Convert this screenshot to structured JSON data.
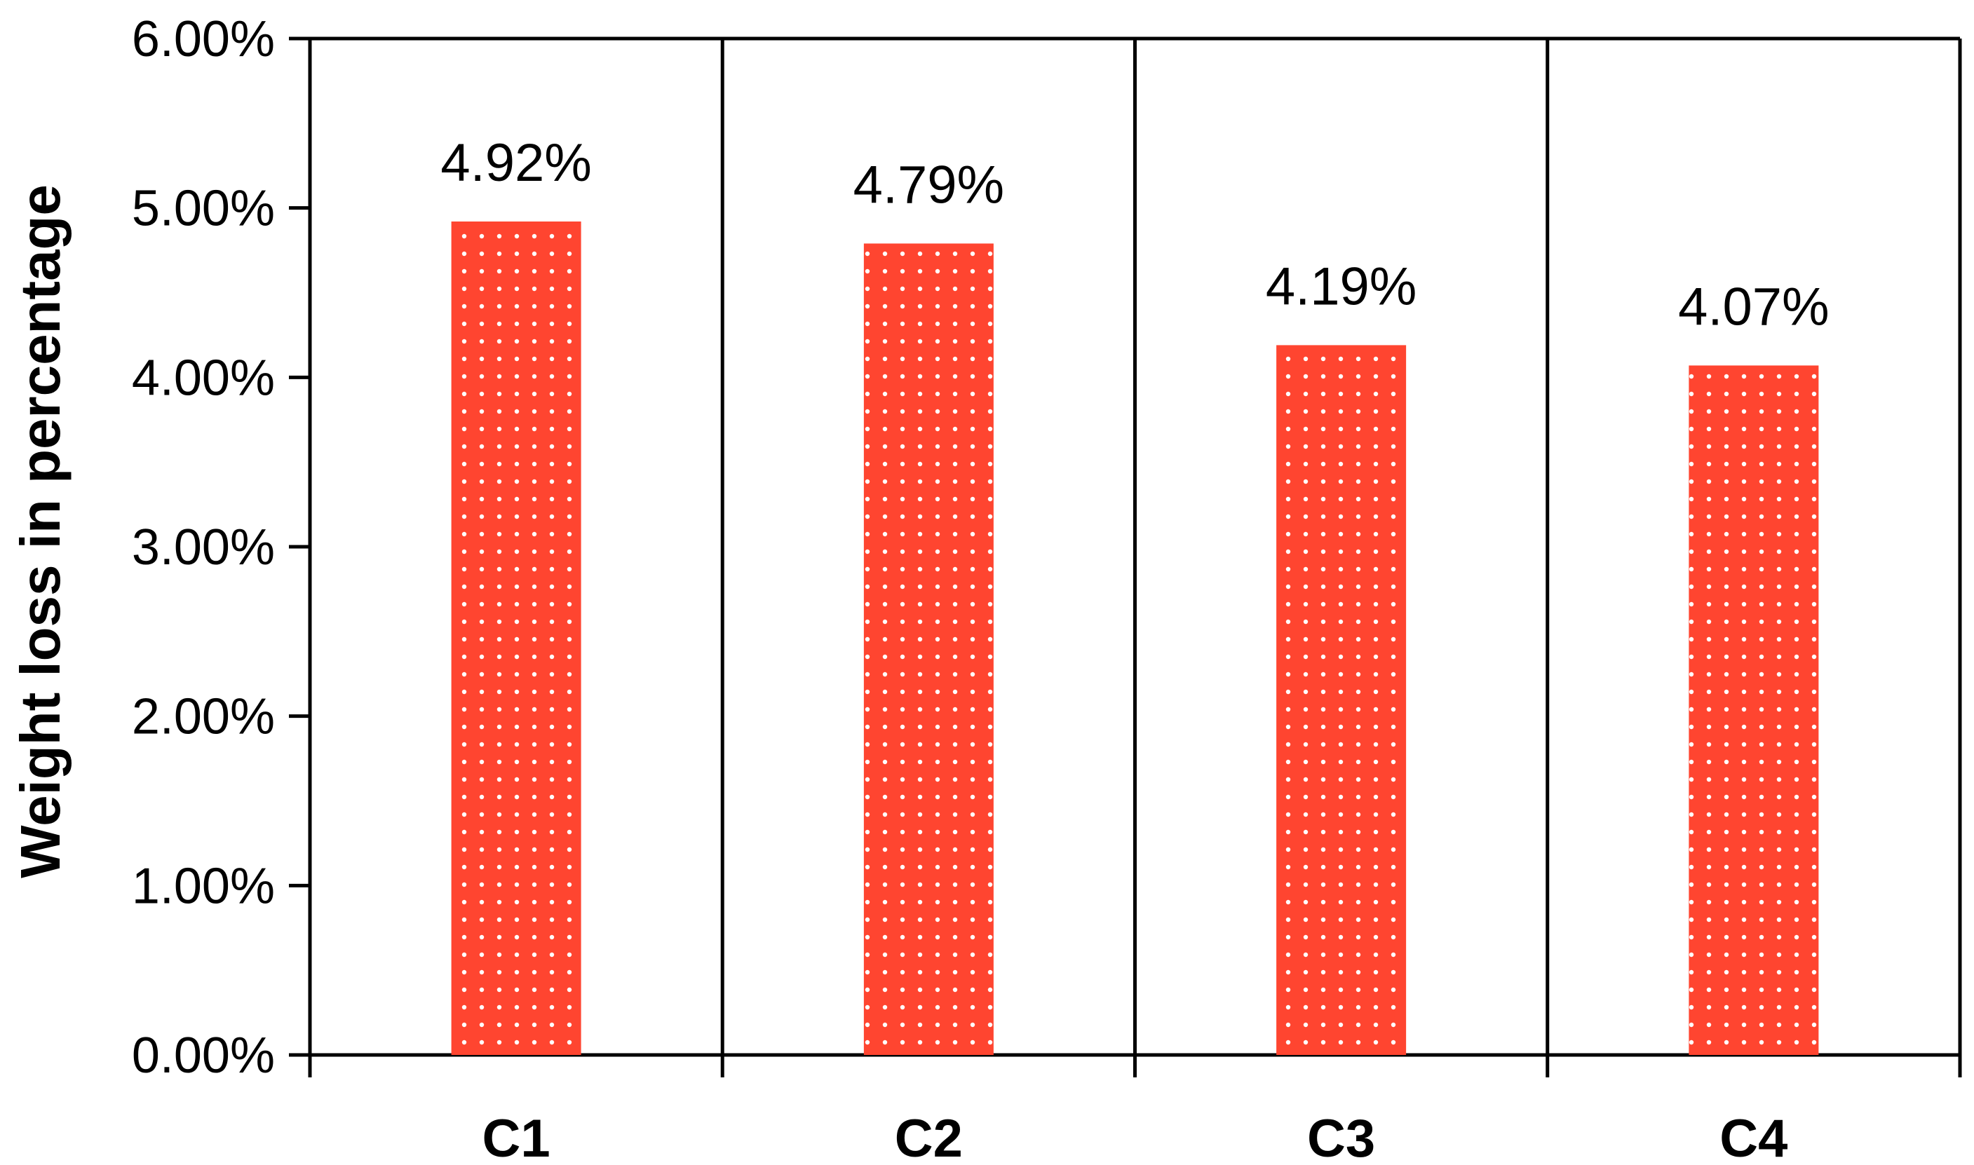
{
  "chart_data": {
    "type": "bar",
    "categories": [
      "C1",
      "C2",
      "C3",
      "C4"
    ],
    "values": [
      4.92,
      4.79,
      4.19,
      4.07
    ],
    "data_labels": [
      "4.92%",
      "4.79%",
      "4.19%",
      "4.07%"
    ],
    "ylabel": "Weight loss in percentage",
    "xlabel": "",
    "ylim": [
      0,
      6
    ],
    "y_tick_values": [
      0,
      1,
      2,
      3,
      4,
      5,
      6
    ],
    "y_tick_labels": [
      "0.00%",
      "1.00%",
      "2.00%",
      "3.00%",
      "4.00%",
      "5.00%",
      "6.00%"
    ],
    "grid": false,
    "category_separators": true,
    "bar_color": "#ff4530",
    "bar_pattern": "white dots"
  }
}
